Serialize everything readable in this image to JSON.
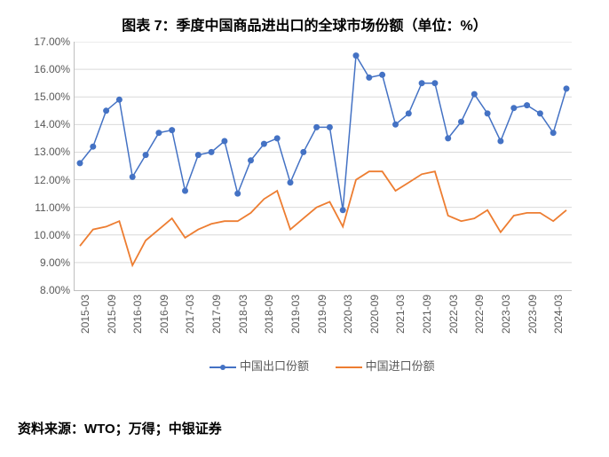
{
  "title": "图表 7：季度中国商品进出口的全球市场份额（单位：%）",
  "source": "资料来源：WTO；万得；中银证券",
  "chart": {
    "type": "line",
    "background_color": "#ffffff",
    "grid_color": "#d9d9d9",
    "axis_color": "#bfbfbf",
    "tick_font_size": 12,
    "tick_color": "#595959",
    "ylim": [
      8.0,
      17.0
    ],
    "ytick_step": 1.0,
    "ytick_format": "{v}.00%",
    "x_labels": [
      "2015-03",
      "2015-09",
      "2016-03",
      "2016-09",
      "2017-03",
      "2017-09",
      "2018-03",
      "2018-09",
      "2019-03",
      "2019-09",
      "2020-03",
      "2020-09",
      "2021-03",
      "2021-09",
      "2022-03",
      "2022-09",
      "2023-03",
      "2023-09",
      "2024-03"
    ],
    "series": [
      {
        "name": "中国出口份额",
        "color": "#4472c4",
        "marker": "circle",
        "marker_size": 5,
        "line_width": 1.5,
        "data": [
          12.6,
          13.2,
          14.5,
          14.9,
          12.1,
          12.9,
          13.7,
          13.8,
          11.6,
          12.9,
          13.0,
          13.4,
          11.5,
          12.7,
          13.3,
          13.5,
          11.9,
          13.0,
          13.9,
          13.9,
          10.9,
          16.5,
          15.7,
          15.8,
          14.0,
          14.4,
          15.5,
          15.5,
          13.5,
          14.1,
          15.1,
          14.4,
          13.4,
          14.6,
          14.7,
          14.4,
          13.7,
          15.3
        ]
      },
      {
        "name": "中国进口份额",
        "color": "#ed7d31",
        "marker": "none",
        "marker_size": 0,
        "line_width": 1.8,
        "data": [
          9.6,
          10.2,
          10.3,
          10.5,
          8.9,
          9.8,
          10.2,
          10.6,
          9.9,
          10.2,
          10.4,
          10.5,
          10.5,
          10.8,
          11.3,
          11.6,
          10.2,
          10.6,
          11.0,
          11.2,
          10.3,
          12.0,
          12.3,
          12.3,
          11.6,
          11.9,
          12.2,
          12.3,
          10.7,
          10.5,
          10.6,
          10.9,
          10.1,
          10.7,
          10.8,
          10.8,
          10.5,
          10.9
        ]
      }
    ],
    "legend_items": [
      {
        "label": "中国出口份额",
        "color": "#4472c4",
        "marker": true
      },
      {
        "label": "中国进口份额",
        "color": "#ed7d31",
        "marker": false
      }
    ]
  }
}
